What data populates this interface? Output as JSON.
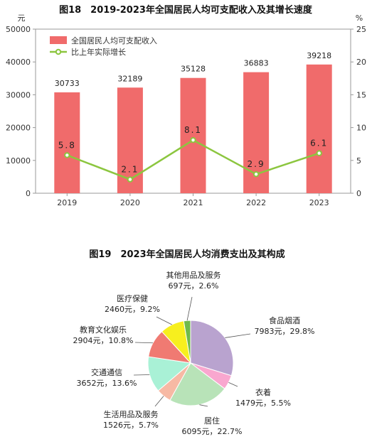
{
  "chart_data": [
    {
      "type": "bar",
      "title": "图18　2019-2023年全国居民人均可支配收入及其增长速度",
      "y_left_unit": "元",
      "y_right_unit": "%",
      "categories": [
        "2019",
        "2020",
        "2021",
        "2022",
        "2023"
      ],
      "y_left_ticks": [
        "0",
        "10000",
        "20000",
        "30000",
        "40000",
        "50000"
      ],
      "y_right_ticks": [
        "0",
        "5",
        "10",
        "15",
        "20",
        "25"
      ],
      "ylim_left": [
        0,
        50000
      ],
      "ylim_right": [
        0,
        25
      ],
      "series": [
        {
          "name": "全国居民人均可支配收入",
          "type": "bar",
          "axis": "left",
          "color": "#f06b6b",
          "values": [
            30733,
            32189,
            35128,
            36883,
            39218
          ],
          "labels": [
            "30733",
            "32189",
            "35128",
            "36883",
            "39218"
          ]
        },
        {
          "name": "比上年实际增长",
          "type": "line",
          "axis": "right",
          "color": "#8cc63f",
          "values": [
            5.8,
            2.1,
            8.1,
            2.9,
            6.1
          ],
          "labels": [
            "5.8",
            "2.1",
            "8.1",
            "2.9",
            "6.1"
          ]
        }
      ],
      "legend_position": "top-left",
      "grid": false
    },
    {
      "type": "pie",
      "title": "图19　2023年全国居民人均消费支出及其构成",
      "slices": [
        {
          "name": "食品烟酒",
          "value": 7983,
          "percent": 29.8,
          "text": "7983元，29.8%",
          "color": "#b9a3cf"
        },
        {
          "name": "衣着",
          "value": 1479,
          "percent": 5.5,
          "text": "1479元，5.5%",
          "color": "#f9a7cf"
        },
        {
          "name": "居住",
          "value": 6095,
          "percent": 22.7,
          "text": "6095元，22.7%",
          "color": "#b8e3b8"
        },
        {
          "name": "生活用品及服务",
          "value": 1526,
          "percent": 5.7,
          "text": "1526元，5.7%",
          "color": "#f7b9a4"
        },
        {
          "name": "交通通信",
          "value": 3652,
          "percent": 13.6,
          "text": "3652元，13.6%",
          "color": "#a9f1d6"
        },
        {
          "name": "教育文化娱乐",
          "value": 2904,
          "percent": 10.8,
          "text": "2904元，10.8%",
          "color": "#f07a72"
        },
        {
          "name": "医疗保健",
          "value": 2460,
          "percent": 9.2,
          "text": "2460元，9.2%",
          "color": "#f7ef1e"
        },
        {
          "name": "其他用品及服务",
          "value": 697,
          "percent": 2.6,
          "text": "697元，2.6%",
          "color": "#6fba4a"
        }
      ]
    }
  ]
}
